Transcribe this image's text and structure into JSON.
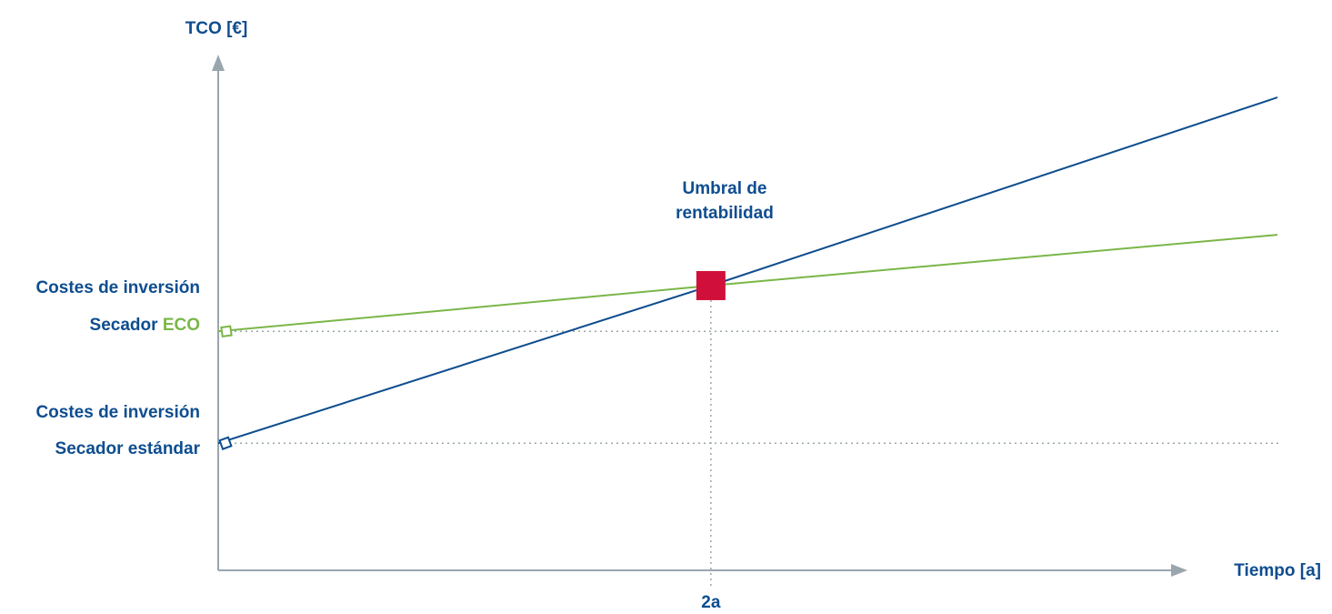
{
  "chart_data": {
    "type": "line",
    "ylabel": "TCO [€]",
    "xlabel": "Tiempo [a]",
    "x_ticks": [
      {
        "x": 2,
        "label": "2a"
      }
    ],
    "xlim": [
      0,
      4.3
    ],
    "ylim": [
      0,
      10
    ],
    "grid": false,
    "series": [
      {
        "name": "Secador ECO",
        "x": [
          0,
          2,
          4.3
        ],
        "y": [
          4.7,
          5.6,
          6.6
        ],
        "color": "#7ab648"
      },
      {
        "name": "Secador estándar",
        "x": [
          0,
          2,
          4.3
        ],
        "y": [
          2.5,
          5.6,
          9.3
        ],
        "color": "#0e4d8f"
      }
    ],
    "annotations": {
      "break_even": {
        "label_line1": "Umbral de",
        "label_line2": "rentabilidad",
        "x": 2,
        "y": 5.6,
        "color": "#d0103a"
      },
      "eco_investment": {
        "line1": "Costes de inversión",
        "line2_prefix": "Secador ",
        "line2_highlight": "ECO",
        "y": 4.7
      },
      "standard_investment": {
        "line1": "Costes de inversión",
        "line2": "Secador estándar",
        "y": 2.5
      }
    },
    "colors": {
      "text": "#0e4d8f",
      "axis": "#9aa6ae",
      "guide": "#98a9a6",
      "eco": "#7ab648",
      "standard": "#0e4d8f",
      "marker": "#d0103a"
    }
  }
}
